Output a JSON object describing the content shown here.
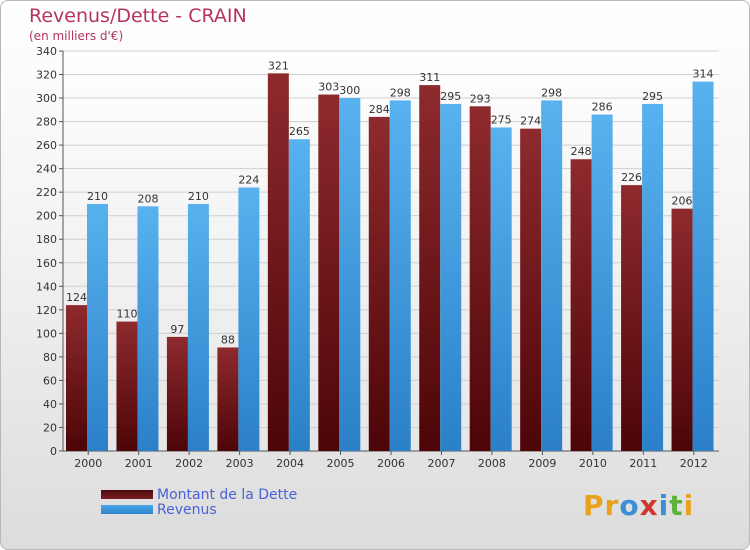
{
  "title": "Revenus/Dette - CRAIN",
  "subtitle": "(en milliers d'€)",
  "logo": {
    "text": "Proxiti",
    "letters": [
      "P",
      "r",
      "o",
      "x",
      "i",
      "t",
      "i"
    ],
    "colors": [
      "#e8a21f",
      "#e8a21f",
      "#3a8fd6",
      "#d0382f",
      "#3a8fd6",
      "#5db33a",
      "#e8a21f"
    ]
  },
  "chart_data": {
    "type": "bar",
    "categories": [
      "2000",
      "2001",
      "2002",
      "2003",
      "2004",
      "2005",
      "2006",
      "2007",
      "2008",
      "2009",
      "2010",
      "2011",
      "2012"
    ],
    "series": [
      {
        "name": "Montant de la Dette",
        "color": "#7a1f22",
        "values": [
          124,
          110,
          97,
          88,
          321,
          303,
          284,
          311,
          293,
          274,
          248,
          226,
          206
        ]
      },
      {
        "name": "Revenus",
        "color": "#4aa6e8",
        "values": [
          210,
          208,
          210,
          224,
          265,
          300,
          298,
          295,
          275,
          298,
          286,
          295,
          314
        ]
      }
    ],
    "ylim": [
      0,
      340
    ],
    "yticks": [
      0,
      20,
      40,
      60,
      80,
      100,
      120,
      140,
      160,
      180,
      200,
      220,
      240,
      260,
      280,
      300,
      320,
      340
    ],
    "grid": true,
    "legend_position": "bottom-left"
  }
}
